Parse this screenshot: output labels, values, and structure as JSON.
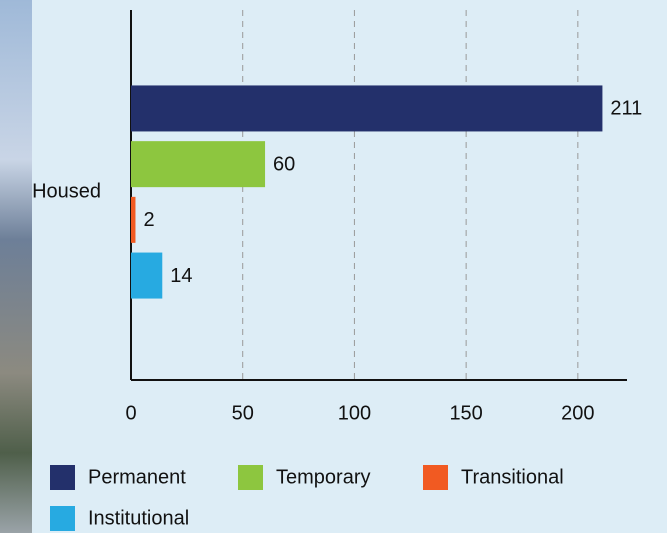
{
  "chart_data": {
    "type": "bar",
    "orientation": "horizontal",
    "categories": [
      "Housed"
    ],
    "series": [
      {
        "name": "Permanent",
        "color": "#23306b",
        "values": [
          211
        ]
      },
      {
        "name": "Temporary",
        "color": "#8dc63f",
        "values": [
          60
        ]
      },
      {
        "name": "Transitional",
        "color": "#f15a22",
        "values": [
          2
        ]
      },
      {
        "name": "Institutional",
        "color": "#27aae1",
        "values": [
          14
        ]
      }
    ],
    "xlim": [
      0,
      222
    ],
    "xticks": [
      0,
      50,
      100,
      150,
      200
    ],
    "grid": true,
    "legend": "bottom"
  }
}
